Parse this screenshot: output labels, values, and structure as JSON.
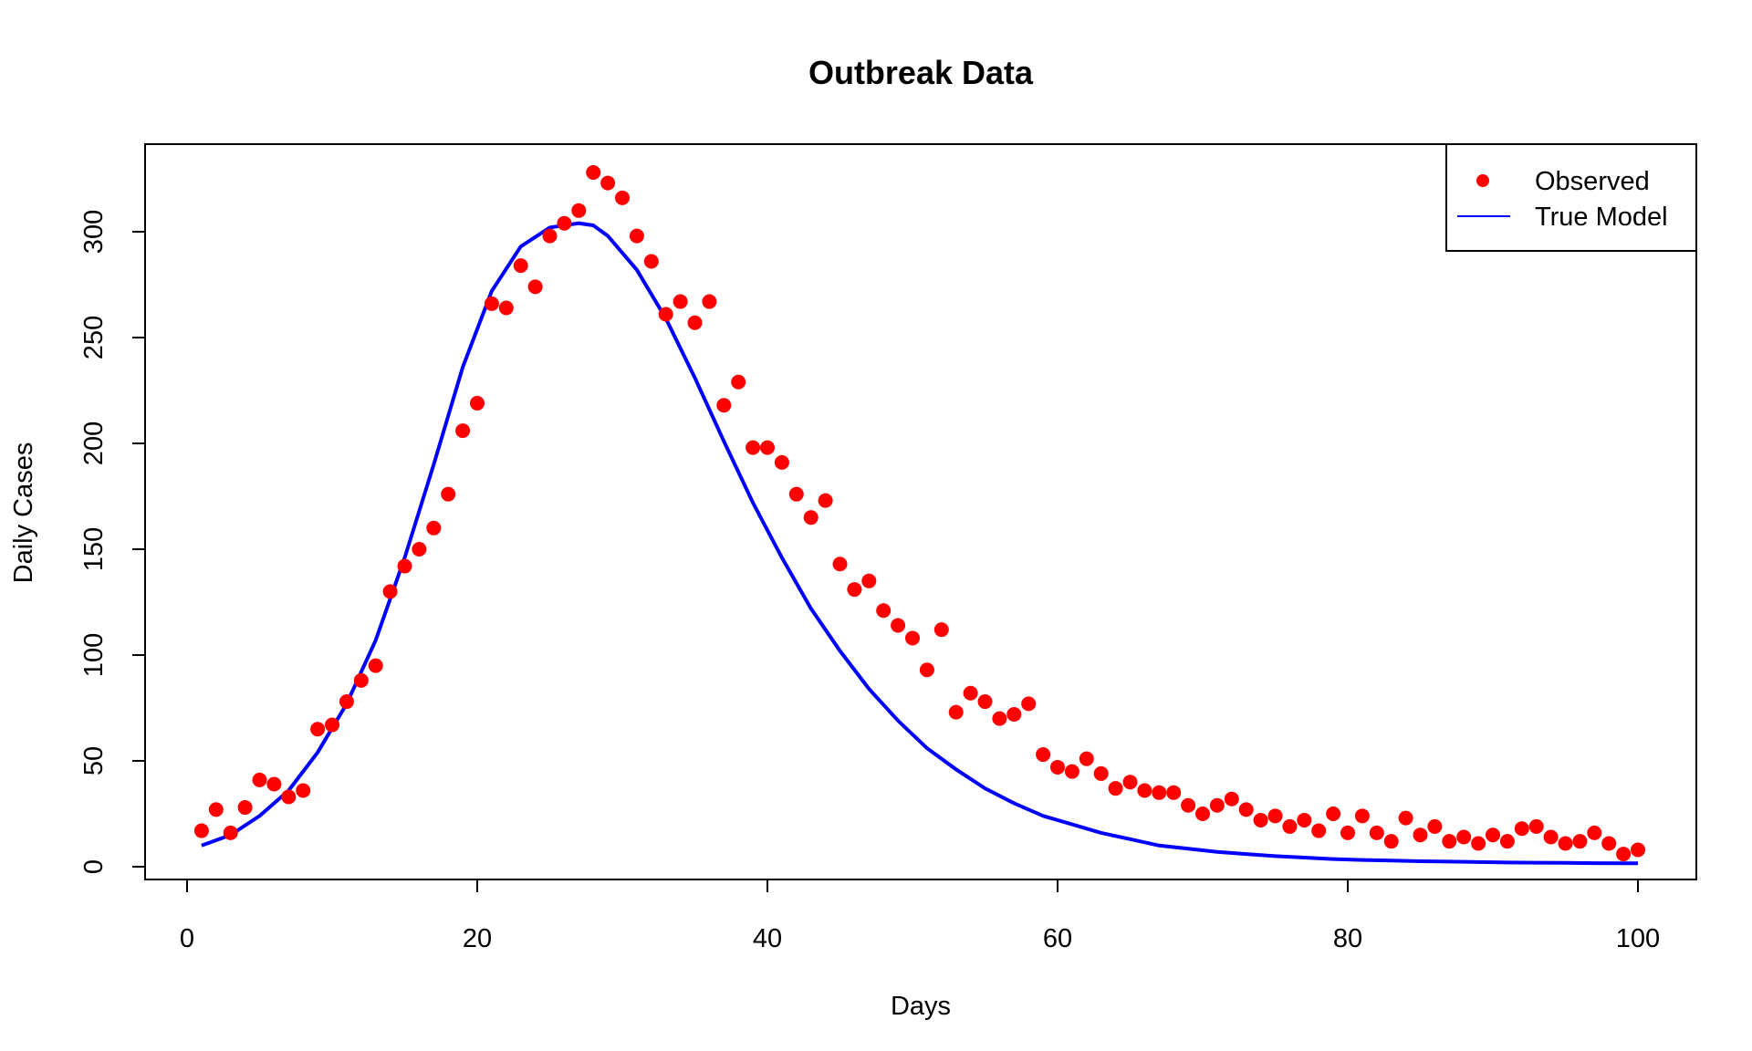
{
  "chart_data": {
    "type": "scatter",
    "title": "Outbreak Data",
    "xlabel": "Days",
    "ylabel": "Daily Cases",
    "xlim": [
      -3,
      104
    ],
    "ylim": [
      -6,
      342
    ],
    "xticks": [
      0,
      20,
      40,
      60,
      80,
      100
    ],
    "yticks": [
      0,
      50,
      100,
      150,
      200,
      250,
      300
    ],
    "grid": false,
    "legend": {
      "position": "top-right",
      "entries": [
        {
          "label": "Observed",
          "type": "point",
          "color": "#ff0000"
        },
        {
          "label": "True Model",
          "type": "line",
          "color": "#0000ff"
        }
      ]
    },
    "series": [
      {
        "name": "Observed",
        "type": "scatter",
        "color": "#ff0000",
        "x": [
          1,
          2,
          3,
          4,
          5,
          6,
          7,
          8,
          9,
          10,
          11,
          12,
          13,
          14,
          15,
          16,
          17,
          18,
          19,
          20,
          21,
          22,
          23,
          24,
          25,
          26,
          27,
          28,
          29,
          30,
          31,
          32,
          33,
          34,
          35,
          36,
          37,
          38,
          39,
          40,
          41,
          42,
          43,
          44,
          45,
          46,
          47,
          48,
          49,
          50,
          51,
          52,
          53,
          54,
          55,
          56,
          57,
          58,
          59,
          60,
          61,
          62,
          63,
          64,
          65,
          66,
          67,
          68,
          69,
          70,
          71,
          72,
          73,
          74,
          75,
          76,
          77,
          78,
          79,
          80,
          81,
          82,
          83,
          84,
          85,
          86,
          87,
          88,
          89,
          90,
          91,
          92,
          93,
          94,
          95,
          96,
          97,
          98,
          99,
          100
        ],
        "y": [
          17,
          27,
          16,
          28,
          41,
          39,
          33,
          36,
          65,
          67,
          78,
          88,
          95,
          130,
          142,
          150,
          160,
          176,
          206,
          219,
          266,
          264,
          284,
          274,
          298,
          304,
          310,
          328,
          323,
          316,
          298,
          286,
          261,
          267,
          257,
          267,
          218,
          229,
          198,
          198,
          191,
          176,
          165,
          173,
          143,
          131,
          135,
          121,
          114,
          108,
          93,
          112,
          73,
          82,
          78,
          70,
          72,
          77,
          53,
          47,
          45,
          51,
          44,
          37,
          40,
          36,
          35,
          35,
          29,
          25,
          29,
          32,
          27,
          22,
          24,
          19,
          22,
          17,
          25,
          16,
          24,
          16,
          12,
          23,
          15,
          19,
          12,
          14,
          11,
          15,
          12,
          18,
          19,
          14,
          11,
          12,
          16,
          11,
          6,
          8
        ]
      },
      {
        "name": "True Model",
        "type": "line",
        "color": "#0000ff",
        "x": [
          1,
          3,
          5,
          7,
          9,
          11,
          13,
          15,
          17,
          19,
          21,
          23,
          25,
          27,
          28,
          29,
          31,
          33,
          35,
          37,
          39,
          41,
          43,
          45,
          47,
          49,
          51,
          53,
          55,
          57,
          59,
          61,
          63,
          65,
          67,
          69,
          71,
          73,
          75,
          77,
          79,
          81,
          83,
          85,
          87,
          89,
          91,
          93,
          95,
          97,
          100
        ],
        "y": [
          10,
          15,
          24,
          36,
          54,
          77,
          107,
          146,
          190,
          236,
          272,
          293,
          302,
          304,
          303,
          298,
          282,
          259,
          231,
          201,
          172,
          146,
          122,
          102,
          84,
          69,
          56,
          46,
          37,
          30,
          24,
          20,
          16,
          13,
          10,
          8.5,
          7,
          6,
          5,
          4.3,
          3.6,
          3.2,
          2.9,
          2.6,
          2.4,
          2.2,
          2,
          1.9,
          1.8,
          1.7,
          1.6
        ]
      }
    ]
  }
}
